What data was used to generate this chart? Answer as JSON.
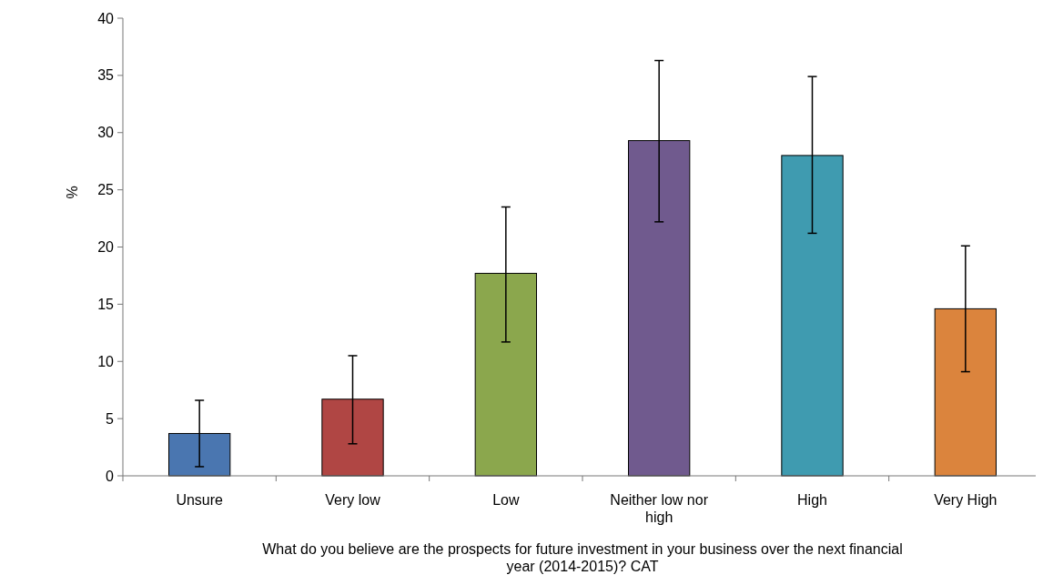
{
  "chart_data": {
    "type": "bar",
    "xlabel": "What do you believe are the prospects for future investment in your business over the next financial year (2014-2015)? CAT",
    "ylabel": "%",
    "categories": [
      "Unsure",
      "Very low",
      "Low",
      "Neither low nor high",
      "High",
      "Very High"
    ],
    "values": [
      3.7,
      6.7,
      17.7,
      29.3,
      28.0,
      14.6
    ],
    "colors": [
      "#4a76b0",
      "#b04644",
      "#8ba74d",
      "#705a8e",
      "#3f9bb0",
      "#db843d"
    ],
    "errors": [
      [
        0.8,
        6.6
      ],
      [
        2.8,
        10.5
      ],
      [
        11.7,
        23.5
      ],
      [
        22.2,
        36.3
      ],
      [
        21.2,
        34.9
      ],
      [
        9.1,
        20.1
      ]
    ],
    "ylim": [
      0,
      40
    ],
    "yticks": [
      0,
      5,
      10,
      15,
      20,
      25,
      30,
      35,
      40
    ],
    "grid": false
  }
}
